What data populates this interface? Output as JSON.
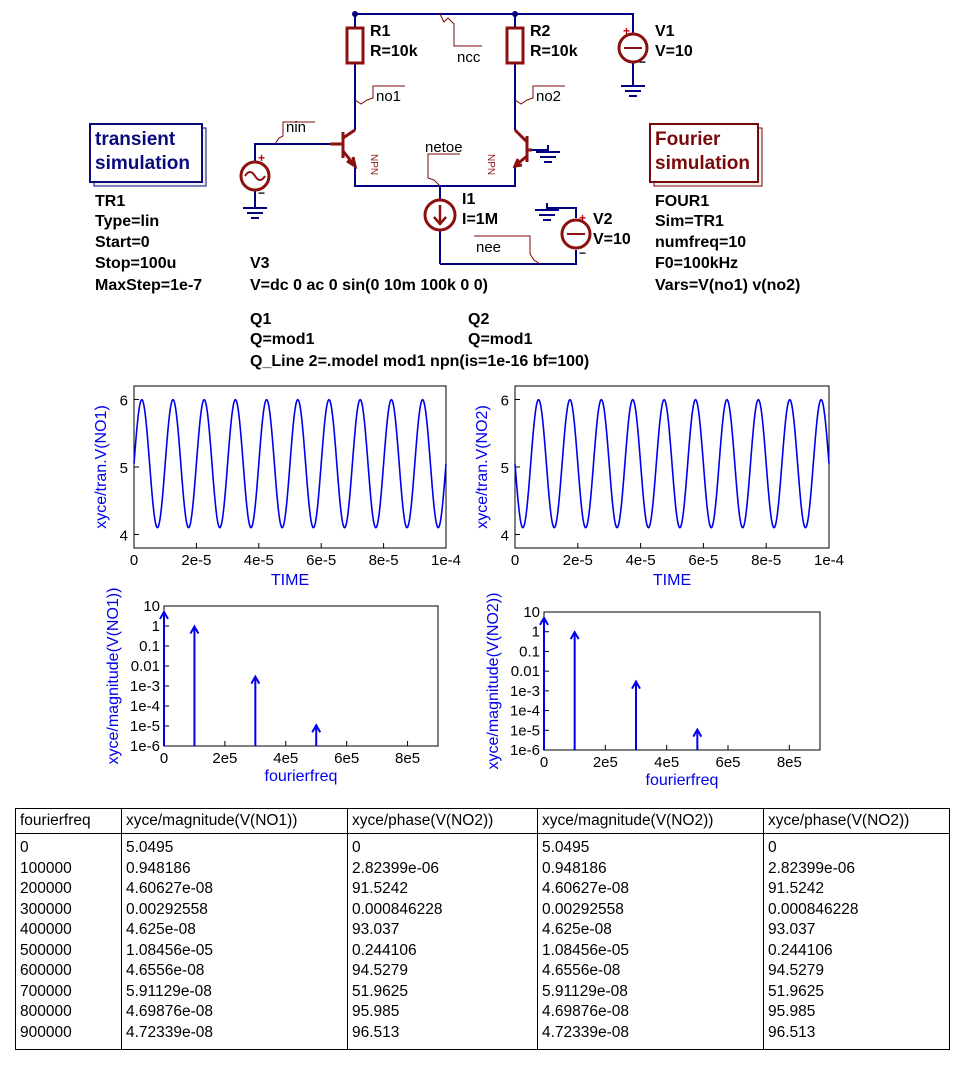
{
  "schematic": {
    "components": {
      "R1": {
        "name": "R1",
        "value": "R=10k"
      },
      "R2": {
        "name": "R2",
        "value": "R=10k"
      },
      "V1": {
        "name": "V1",
        "value": "V=10"
      },
      "V2": {
        "name": "V2",
        "value": "V=10"
      },
      "I1": {
        "name": "I1",
        "value": "I=1M"
      },
      "V3": {
        "name": "V3",
        "value": "V=dc 0 ac 0 sin(0 10m 100k 0 0)"
      },
      "Q1": {
        "name": "Q1",
        "value": "Q=mod1"
      },
      "Q2": {
        "name": "Q2",
        "value": "Q=mod1"
      },
      "model_line": "Q_Line 2=.model mod1 npn(is=1e-16 bf=100)",
      "npn_tag": "NPN",
      "plus": "+",
      "minus": "−"
    },
    "wire_labels": {
      "ncc": "ncc",
      "no1": "no1",
      "no2": "no2",
      "nin": "nin",
      "netoe": "netoe",
      "nee": "nee"
    },
    "transient": {
      "title_lines": [
        "transient",
        "simulation"
      ],
      "params": [
        "TR1",
        "Type=lin",
        "Start=0",
        "Stop=100u",
        "MaxStep=1e-7"
      ],
      "color": "#0a0a7a"
    },
    "fourier": {
      "title_lines": [
        "Fourier",
        "simulation"
      ],
      "params": [
        "FOUR1",
        "Sim=TR1",
        "numfreq=10",
        "F0=100kHz",
        "Vars=V(no1) v(no2)"
      ],
      "color": "#7a0a0a"
    }
  },
  "chart_data": [
    {
      "type": "line",
      "ylabel": "xyce/tran.V(NO1)",
      "xlabel": "TIME",
      "xlim": [
        0,
        0.0001
      ],
      "ylim": [
        3.8,
        6.2
      ],
      "xticks": [
        "0",
        "2e-5",
        "4e-5",
        "6e-5",
        "8e-5",
        "1e-4"
      ],
      "yticks": [
        "4",
        "5",
        "6"
      ],
      "series": [
        {
          "offset": 5.0495,
          "amplitude": 0.948,
          "frequency_hz": 100000,
          "cycles": 10,
          "color": "#0000ee"
        }
      ],
      "grid": false
    },
    {
      "type": "line",
      "ylabel": "xyce/tran.V(NO2)",
      "xlabel": "TIME",
      "xlim": [
        0,
        0.0001
      ],
      "ylim": [
        3.8,
        6.2
      ],
      "xticks": [
        "0",
        "2e-5",
        "4e-5",
        "6e-5",
        "8e-5",
        "1e-4"
      ],
      "yticks": [
        "4",
        "5",
        "6"
      ],
      "series": [
        {
          "offset": 5.0495,
          "amplitude": 0.948,
          "frequency_hz": 100000,
          "cycles": 10,
          "color": "#0000ee",
          "inverted": true
        }
      ],
      "grid": false
    },
    {
      "type": "bar",
      "scale": "log",
      "ylabel": "xyce/magnitude(V(NO1))",
      "xlabel": "fourierfreq",
      "xlim": [
        0,
        900000
      ],
      "ylim": [
        1e-06,
        10
      ],
      "xticks": [
        "0",
        "2e5",
        "4e5",
        "6e5",
        "8e5"
      ],
      "yticks": [
        "10",
        "1",
        "0.1",
        "0.01",
        "1e-3",
        "1e-4",
        "1e-5",
        "1e-6"
      ],
      "x": [
        0,
        100000,
        300000,
        500000
      ],
      "values": [
        5.0495,
        0.948186,
        0.00292558,
        1.08456e-05
      ],
      "color": "#0000ee"
    },
    {
      "type": "bar",
      "scale": "log",
      "ylabel": "xyce/magnitude(V(NO2))",
      "xlabel": "fourierfreq",
      "xlim": [
        0,
        900000
      ],
      "ylim": [
        1e-06,
        10
      ],
      "xticks": [
        "0",
        "2e5",
        "4e5",
        "6e5",
        "8e5"
      ],
      "yticks": [
        "10",
        "1",
        "0.1",
        "0.01",
        "1e-3",
        "1e-4",
        "1e-5",
        "1e-6"
      ],
      "x": [
        0,
        100000,
        300000,
        500000
      ],
      "values": [
        5.0495,
        0.948186,
        0.00292558,
        1.08456e-05
      ],
      "color": "#0000ee"
    }
  ],
  "table": {
    "headers": [
      "fourierfreq",
      "xyce/magnitude(V(NO1))",
      "xyce/phase(V(NO2))",
      "xyce/magnitude(V(NO2))",
      "xyce/phase(V(NO2))"
    ],
    "rows": [
      [
        "0",
        "5.0495",
        "0",
        "5.0495",
        "0"
      ],
      [
        "100000",
        "0.948186",
        "2.82399e-06",
        "0.948186",
        "2.82399e-06"
      ],
      [
        "200000",
        "4.60627e-08",
        "91.5242",
        "4.60627e-08",
        "91.5242"
      ],
      [
        "300000",
        "0.00292558",
        "0.000846228",
        "0.00292558",
        "0.000846228"
      ],
      [
        "400000",
        "4.625e-08",
        "93.037",
        "4.625e-08",
        "93.037"
      ],
      [
        "500000",
        "1.08456e-05",
        "0.244106",
        "1.08456e-05",
        "0.244106"
      ],
      [
        "600000",
        "4.6556e-08",
        "94.5279",
        "4.6556e-08",
        "94.5279"
      ],
      [
        "700000",
        "5.91129e-08",
        "51.9625",
        "5.91129e-08",
        "51.9625"
      ],
      [
        "800000",
        "4.69876e-08",
        "95.985",
        "4.69876e-08",
        "95.985"
      ],
      [
        "900000",
        "4.72339e-08",
        "96.513",
        "4.72339e-08",
        "96.513"
      ]
    ]
  }
}
